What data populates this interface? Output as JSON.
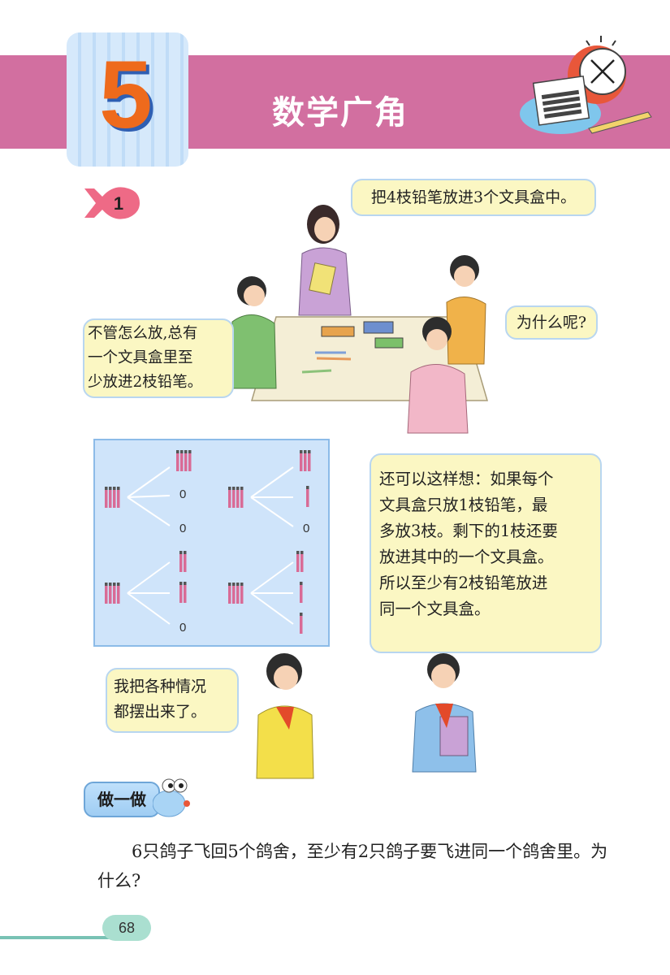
{
  "header": {
    "chapter_number": "5",
    "chapter_title": "数学广角"
  },
  "example": {
    "number": "1"
  },
  "bubbles": {
    "teacher": "把4枝铅笔放进3个文具盒中。",
    "boy_left": [
      "不管怎么放,总有",
      "一个文具盒里至",
      "少放进2枝铅笔。"
    ],
    "girl_right": "为什么呢?",
    "boy_explain": [
      "还可以这样想：如果每个",
      "文具盒只放1枝铅笔，最",
      "多放3枝。剩下的1枝还要",
      "放进其中的一个文具盒。",
      "所以至少有2枝铅笔放进",
      "同一个文具盒。"
    ],
    "girl_bottom": [
      "我把各种情况",
      "都摆出来了。"
    ]
  },
  "diagram": {
    "zero_label": "0"
  },
  "activity": {
    "label": "做一做"
  },
  "exercise": {
    "text": "6只鸽子飞回5个鸽舍，至少有2只鸽子要飞进同一个鸽舍里。为什么?"
  },
  "page": {
    "number": "68"
  }
}
